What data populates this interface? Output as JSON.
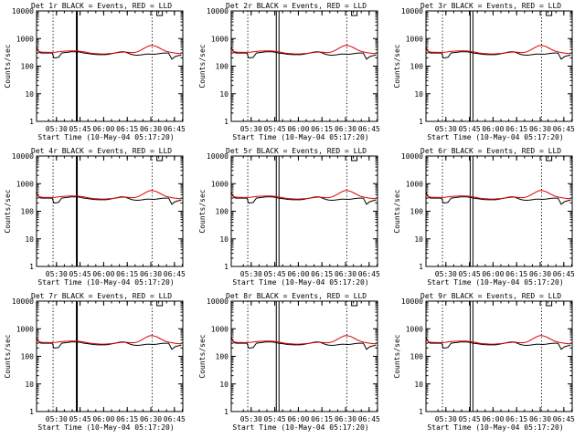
{
  "figure": {
    "background": "#ffffff",
    "colors": {
      "events": "#000000",
      "lld": "#e00000",
      "axes": "#000000"
    }
  },
  "chart_data": [
    {
      "type": "line",
      "title": "Det 1r BLACK = Events, RED = LLD",
      "xlabel": "Start Time (10-May-04 05:17:20)",
      "ylabel": "Counts/sec",
      "xticks": [
        "05:30",
        "05:45",
        "06:00",
        "06:15",
        "06:30",
        "06:45"
      ],
      "yticks": [
        "1",
        "10",
        "100",
        "1000",
        "10000"
      ],
      "yscale": "log",
      "ylim": [
        1,
        10000
      ],
      "xlim_minutes_after_start": [
        0,
        93
      ],
      "vertical_markers": [
        {
          "label": "dotted",
          "minute": 10.5
        },
        {
          "label": "solid",
          "minute": 25.6
        },
        {
          "label": "dotted",
          "minute": 73.5
        }
      ],
      "series": [
        {
          "name": "Events",
          "color": "#000000",
          "x": [
            0,
            1,
            2,
            3,
            4,
            5,
            6,
            7,
            8,
            9,
            10,
            11,
            12,
            14,
            16,
            18,
            20,
            22,
            24,
            26,
            28,
            30,
            32,
            34,
            36,
            38,
            40,
            42,
            44,
            46,
            48,
            50,
            52,
            54,
            56,
            58,
            60,
            62,
            64,
            66,
            68,
            70,
            72,
            74,
            76,
            78,
            80,
            82,
            84,
            86,
            88,
            90,
            92
          ],
          "y": [
            500,
            360,
            310,
            300,
            300,
            300,
            300,
            300,
            300,
            300,
            300,
            200,
            200,
            210,
            300,
            310,
            320,
            330,
            330,
            330,
            320,
            300,
            290,
            280,
            270,
            265,
            260,
            260,
            260,
            270,
            285,
            300,
            320,
            330,
            330,
            300,
            270,
            255,
            250,
            255,
            265,
            275,
            275,
            270,
            275,
            285,
            295,
            300,
            300,
            180,
            220,
            240,
            250
          ]
        },
        {
          "name": "LLD",
          "color": "#e00000",
          "x": [
            0,
            2,
            4,
            6,
            8,
            10,
            12,
            14,
            16,
            18,
            20,
            22,
            24,
            26,
            28,
            30,
            32,
            34,
            36,
            38,
            40,
            42,
            44,
            46,
            48,
            50,
            52,
            54,
            56,
            58,
            60,
            62,
            64,
            66,
            68,
            70,
            72,
            74,
            76,
            78,
            80,
            82,
            84,
            86,
            88,
            90,
            92
          ],
          "y": [
            400,
            330,
            320,
            320,
            315,
            315,
            320,
            330,
            340,
            350,
            355,
            360,
            360,
            355,
            345,
            330,
            315,
            300,
            290,
            285,
            280,
            278,
            280,
            285,
            290,
            300,
            310,
            320,
            325,
            320,
            310,
            310,
            330,
            370,
            430,
            500,
            560,
            560,
            520,
            460,
            400,
            350,
            330,
            310,
            300,
            290,
            280
          ]
        }
      ]
    },
    {
      "type": "line",
      "title": "Det 2r BLACK = Events, RED = LLD",
      "xlabel": "Start Time (10-May-04 05:17:20)",
      "ylabel": "Counts/sec",
      "xticks": [
        "05:30",
        "05:45",
        "06:00",
        "06:15",
        "06:30",
        "06:45"
      ],
      "yticks": [
        "1",
        "10",
        "100",
        "1000",
        "10000"
      ],
      "yscale": "log",
      "ylim": [
        1,
        10000
      ],
      "same_series_as": "Det 1r"
    },
    {
      "type": "line",
      "title": "Det 3r BLACK = Events, RED = LLD",
      "xlabel": "Start Time (10-May-04 05:17:20)",
      "ylabel": "Counts/sec",
      "xticks": [
        "05:30",
        "05:45",
        "06:00",
        "06:15",
        "06:30",
        "06:45"
      ],
      "yticks": [
        "1",
        "10",
        "100",
        "1000",
        "10000"
      ],
      "yscale": "log",
      "ylim": [
        1,
        10000
      ],
      "same_series_as": "Det 1r"
    },
    {
      "type": "line",
      "title": "Det 4r BLACK = Events, RED = LLD",
      "xlabel": "Start Time (10-May-04 05:17:20)",
      "ylabel": "Counts/sec",
      "xticks": [
        "05:30",
        "05:45",
        "06:00",
        "06:15",
        "06:30",
        "06:45"
      ],
      "yticks": [
        "1",
        "10",
        "100",
        "1000",
        "10000"
      ],
      "yscale": "log",
      "ylim": [
        1,
        10000
      ],
      "same_series_as": "Det 1r"
    },
    {
      "type": "line",
      "title": "Det 5r BLACK = Events, RED = LLD",
      "xlabel": "Start Time (10-May-04 05:17:20)",
      "ylabel": "Counts/sec",
      "xticks": [
        "05:30",
        "05:45",
        "06:00",
        "06:15",
        "06:30",
        "06:45"
      ],
      "yticks": [
        "1",
        "10",
        "100",
        "1000",
        "10000"
      ],
      "yscale": "log",
      "ylim": [
        1,
        10000
      ],
      "same_series_as": "Det 1r"
    },
    {
      "type": "line",
      "title": "Det 6r BLACK = Events, RED = LLD",
      "xlabel": "Start Time (10-May-04 05:17:20)",
      "ylabel": "Counts/sec",
      "xticks": [
        "05:30",
        "05:45",
        "06:00",
        "06:15",
        "06:30",
        "06:45"
      ],
      "yticks": [
        "1",
        "10",
        "100",
        "1000",
        "10000"
      ],
      "yscale": "log",
      "ylim": [
        1,
        10000
      ],
      "same_series_as": "Det 1r"
    },
    {
      "type": "line",
      "title": "Det 7r BLACK = Events, RED = LLD",
      "xlabel": "Start Time (10-May-04 05:17:20)",
      "ylabel": "Counts/sec",
      "xticks": [
        "05:30",
        "05:45",
        "06:00",
        "06:15",
        "06:30",
        "06:45"
      ],
      "yticks": [
        "1",
        "10",
        "100",
        "1000",
        "10000"
      ],
      "yscale": "log",
      "ylim": [
        1,
        10000
      ],
      "same_series_as": "Det 1r"
    },
    {
      "type": "line",
      "title": "Det 8r BLACK = Events, RED = LLD",
      "xlabel": "Start Time (10-May-04 05:17:20)",
      "ylabel": "Counts/sec",
      "xticks": [
        "05:30",
        "05:45",
        "06:00",
        "06:15",
        "06:30",
        "06:45"
      ],
      "yticks": [
        "1",
        "10",
        "100",
        "1000",
        "10000"
      ],
      "yscale": "log",
      "ylim": [
        1,
        10000
      ],
      "same_series_as": "Det 1r"
    },
    {
      "type": "line",
      "title": "Det 9r BLACK = Events, RED = LLD",
      "xlabel": "Start Time (10-May-04 05:17:20)",
      "ylabel": "Counts/sec",
      "xticks": [
        "05:30",
        "05:45",
        "06:00",
        "06:15",
        "06:30",
        "06:45"
      ],
      "yticks": [
        "1",
        "10",
        "100",
        "1000",
        "10000"
      ],
      "yscale": "log",
      "ylim": [
        1,
        10000
      ],
      "same_series_as": "Det 1r"
    }
  ]
}
